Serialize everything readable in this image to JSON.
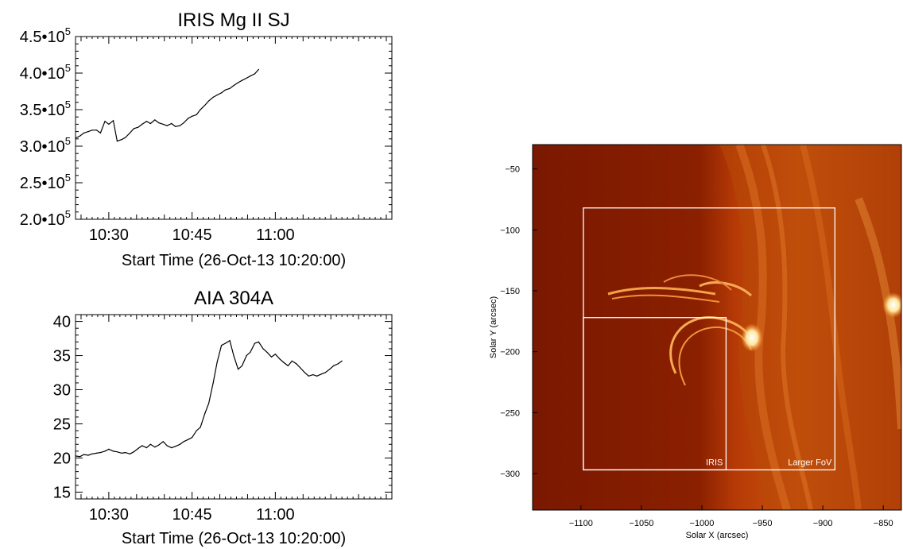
{
  "chart_data": [
    {
      "type": "line",
      "title": "IRIS Mg II SJ",
      "xlabel": "Start Time (26-Oct-13 10:20:00)",
      "ylabel": "",
      "x_unit": "minutes after 10:20:00",
      "xlim": [
        4,
        61
      ],
      "ylim": [
        200000,
        450000
      ],
      "x_ticks": [
        10,
        25,
        40
      ],
      "x_tick_labels": [
        "10:30",
        "10:45",
        "11:00"
      ],
      "y_ticks": [
        200000,
        250000,
        300000,
        350000,
        400000,
        450000
      ],
      "y_tick_labels": [
        {
          "mant": "2.0•10",
          "exp": "5"
        },
        {
          "mant": "2.5•10",
          "exp": "5"
        },
        {
          "mant": "3.0•10",
          "exp": "5"
        },
        {
          "mant": "3.5•10",
          "exp": "5"
        },
        {
          "mant": "4.0•10",
          "exp": "5"
        },
        {
          "mant": "4.5•10",
          "exp": "5"
        }
      ],
      "x": [
        4.0,
        4.8,
        5.5,
        6.3,
        7.0,
        7.8,
        8.5,
        9.3,
        10.0,
        10.8,
        11.5,
        12.3,
        13.0,
        13.8,
        14.5,
        15.3,
        16.0,
        16.8,
        17.5,
        18.3,
        19.0,
        19.8,
        20.5,
        21.3,
        22.0,
        22.8,
        23.5,
        24.3,
        25.0,
        25.8,
        26.5,
        27.3,
        28.0,
        28.8,
        29.5,
        30.3,
        31.0,
        31.8,
        32.5,
        33.3,
        34.0,
        34.8,
        35.5,
        36.3,
        37.0
      ],
      "series": [
        {
          "values": [
            311000,
            314000,
            318000,
            320000,
            322000,
            322000,
            318000,
            334000,
            330000,
            335000,
            307000,
            309000,
            312000,
            318000,
            324000,
            326000,
            330000,
            334000,
            331000,
            336000,
            332000,
            330000,
            328000,
            331000,
            327000,
            328000,
            332000,
            338000,
            341000,
            343000,
            350000,
            356000,
            362000,
            367000,
            370000,
            373000,
            377000,
            379000,
            383000,
            387000,
            390000,
            393000,
            396000,
            399000,
            405000
          ]
        }
      ]
    },
    {
      "type": "line",
      "title": "AIA 304A",
      "xlabel": "Start Time (26-Oct-13 10:20:00)",
      "ylabel": "",
      "x_unit": "minutes after 10:20:00",
      "xlim": [
        4,
        61
      ],
      "ylim": [
        14,
        41
      ],
      "x_ticks": [
        10,
        25,
        40
      ],
      "x_tick_labels": [
        "10:30",
        "10:45",
        "11:00"
      ],
      "y_ticks": [
        15,
        20,
        25,
        30,
        35,
        40
      ],
      "y_tick_labels": [
        "15",
        "20",
        "25",
        "30",
        "35",
        "40"
      ],
      "x": [
        4.0,
        4.8,
        5.5,
        6.3,
        7.0,
        7.8,
        8.5,
        9.3,
        10.0,
        10.8,
        11.5,
        12.3,
        13.0,
        13.8,
        14.5,
        15.3,
        16.0,
        16.8,
        17.5,
        18.3,
        19.0,
        19.8,
        20.5,
        21.3,
        22.0,
        22.8,
        23.5,
        24.3,
        25.0,
        25.8,
        26.5,
        27.3,
        28.0,
        28.8,
        29.5,
        30.3,
        31.0,
        31.8,
        32.5,
        33.3,
        34.0,
        34.8,
        35.5,
        36.3,
        37.0,
        37.8,
        38.5,
        39.3,
        40.0,
        40.8,
        41.5,
        42.3,
        43.0,
        43.8,
        44.5,
        45.3,
        46.0,
        46.8,
        47.5,
        48.3,
        49.0,
        49.8,
        50.5,
        51.3,
        52.0
      ],
      "series": [
        {
          "values": [
            20.3,
            20.2,
            20.5,
            20.4,
            20.6,
            20.7,
            20.8,
            21.0,
            21.3,
            21.0,
            20.9,
            20.7,
            20.8,
            20.6,
            20.9,
            21.4,
            21.8,
            21.5,
            22.0,
            21.6,
            21.9,
            22.4,
            21.8,
            21.5,
            21.7,
            22.0,
            22.4,
            22.7,
            23.0,
            24.0,
            24.5,
            26.5,
            28.0,
            31.0,
            34.0,
            36.5,
            36.8,
            37.2,
            35.0,
            33.0,
            33.5,
            35.0,
            35.5,
            36.8,
            37.0,
            36.0,
            35.5,
            34.8,
            35.2,
            34.5,
            34.0,
            33.5,
            34.2,
            33.8,
            33.2,
            32.5,
            32.0,
            32.2,
            32.0,
            32.3,
            32.5,
            33.0,
            33.5,
            33.8,
            34.2
          ]
        }
      ]
    },
    {
      "type": "image",
      "xlabel": "Solar X (arcsec)",
      "ylabel": "Solar Y (arcsec)",
      "xlim": [
        -1140,
        -835
      ],
      "ylim": [
        -330,
        -30
      ],
      "x_ticks": [
        -1100,
        -1050,
        -1000,
        -950,
        -900,
        -850
      ],
      "x_tick_labels": [
        "−1100",
        "−1050",
        "−1000",
        "−950",
        "−900",
        "−850"
      ],
      "y_ticks": [
        -50,
        -100,
        -150,
        -200,
        -250,
        -300
      ],
      "y_tick_labels": [
        "−50",
        "−100",
        "−150",
        "−200",
        "−250",
        "−300"
      ],
      "boxes": [
        {
          "label": "IRIS",
          "x0": -1098,
          "x1": -980,
          "y0": -297,
          "y1": -172
        },
        {
          "label": "Larger FoV",
          "x0": -1098,
          "x1": -890,
          "y0": -297,
          "y1": -82
        }
      ],
      "colors": {
        "background": "#8a1f00",
        "limb": "#e0701a",
        "bright": "#fff6d0"
      }
    }
  ]
}
